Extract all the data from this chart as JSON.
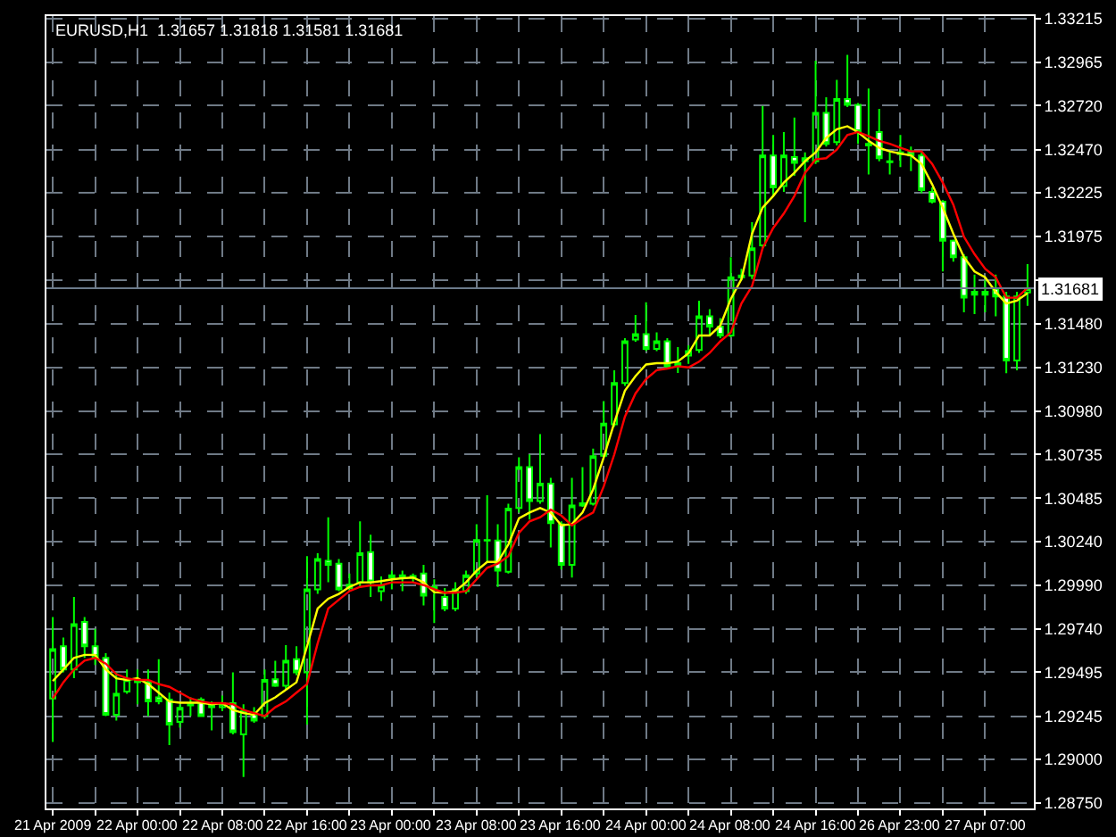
{
  "chart_data": {
    "type": "candlestick",
    "title": "EURUSD,H1  1.31657 1.31818 1.31581 1.31681",
    "categories": [
      "21 Apr 2009",
      null,
      null,
      null,
      null,
      null,
      null,
      null,
      "22 Apr 00:00",
      null,
      null,
      null,
      null,
      null,
      null,
      null,
      "22 Apr 08:00",
      null,
      null,
      null,
      null,
      null,
      null,
      null,
      "22 Apr 16:00",
      null,
      null,
      null,
      null,
      null,
      null,
      null,
      "23 Apr 00:00",
      null,
      null,
      null,
      null,
      null,
      null,
      null,
      "23 Apr 08:00",
      null,
      null,
      null,
      null,
      null,
      null,
      null,
      "23 Apr 16:00",
      null,
      null,
      null,
      null,
      null,
      null,
      null,
      "24 Apr 00:00",
      null,
      null,
      null,
      null,
      null,
      null,
      null,
      "24 Apr 08:00",
      null,
      null,
      null,
      null,
      null,
      null,
      null,
      "24 Apr 16:00",
      null,
      null,
      null,
      null,
      null,
      null,
      null,
      "26 Apr 23:00",
      null,
      null,
      null,
      null,
      null,
      null,
      null,
      "27 Apr 07:00",
      null,
      null,
      null,
      null
    ],
    "color": "#00ff00",
    "ohlc": [
      [
        1.29346,
        1.29809,
        1.29098,
        1.29627
      ],
      [
        1.29643,
        1.29693,
        1.29494,
        1.29511
      ],
      [
        1.29511,
        1.29924,
        1.29461,
        1.29769
      ],
      [
        1.29782,
        1.29809,
        1.29577,
        1.29643
      ],
      [
        1.29643,
        1.29742,
        1.29537,
        1.29584
      ],
      [
        1.29577,
        1.29604,
        1.29246,
        1.29253
      ],
      [
        1.29253,
        1.29494,
        1.2922,
        1.29372
      ],
      [
        1.29385,
        1.29511,
        1.29372,
        1.29455
      ],
      [
        1.29438,
        1.29511,
        1.29313,
        1.29451
      ],
      [
        1.29438,
        1.29511,
        1.29246,
        1.29329
      ],
      [
        1.29352,
        1.2957,
        1.29313,
        1.29329
      ],
      [
        1.29339,
        1.29379,
        1.29081,
        1.29197
      ],
      [
        1.29213,
        1.29313,
        1.2918,
        1.29293
      ],
      [
        1.29306,
        1.29352,
        1.29246,
        1.29313
      ],
      [
        1.29339,
        1.29352,
        1.2924,
        1.29246
      ],
      [
        1.29313,
        1.29329,
        1.29164,
        1.29296
      ],
      [
        1.29296,
        1.29362,
        1.29273,
        1.29319
      ],
      [
        1.29319,
        1.29494,
        1.29141,
        1.29154
      ],
      [
        1.29141,
        1.29313,
        1.28899,
        1.29273
      ],
      [
        1.29253,
        1.29296,
        1.29207,
        1.2922
      ],
      [
        1.29246,
        1.29511,
        1.2923,
        1.29451
      ],
      [
        1.29455,
        1.29561,
        1.29412,
        1.29418
      ],
      [
        1.29418,
        1.2965,
        1.29395,
        1.29561
      ],
      [
        1.2957,
        1.29643,
        1.29478,
        1.29494
      ],
      [
        1.29494,
        1.30156,
        1.29197,
        1.29967
      ],
      [
        1.29967,
        1.30172,
        1.29941,
        1.30139
      ],
      [
        1.30129,
        1.30377,
        1.30007,
        1.30106
      ],
      [
        1.30113,
        1.30139,
        1.29957,
        1.29967
      ],
      [
        1.29974,
        1.30057,
        1.29957,
        1.29994
      ],
      [
        1.30007,
        1.30354,
        1.29974,
        1.30172
      ],
      [
        1.30179,
        1.30278,
        1.29924,
        1.30007
      ],
      [
        1.29957,
        1.3004,
        1.29901,
        1.29987
      ],
      [
        1.30034,
        1.30073,
        1.29967,
        1.30047
      ],
      [
        1.3004,
        1.30073,
        1.29957,
        1.30047
      ],
      [
        1.30034,
        1.30057,
        1.30007,
        1.30043
      ],
      [
        1.30057,
        1.30106,
        1.29875,
        1.29931
      ],
      [
        1.29967,
        1.30024,
        1.29775,
        1.29981
      ],
      [
        1.29924,
        1.29974,
        1.29842,
        1.29858
      ],
      [
        1.29858,
        1.30007,
        1.29842,
        1.29967
      ],
      [
        1.29957,
        1.30073,
        1.29941,
        1.30047
      ],
      [
        1.30057,
        1.30338,
        1.30034,
        1.30248
      ],
      [
        1.30248,
        1.30503,
        1.30123,
        1.30245
      ],
      [
        1.30245,
        1.30338,
        1.29981,
        1.30073
      ],
      [
        1.30067,
        1.30454,
        1.30057,
        1.30427
      ],
      [
        1.3043,
        1.30718,
        1.30404,
        1.30662
      ],
      [
        1.30662,
        1.30735,
        1.30364,
        1.3047
      ],
      [
        1.3047,
        1.3085,
        1.30454,
        1.30569
      ],
      [
        1.30569,
        1.30602,
        1.30206,
        1.30344
      ],
      [
        1.30338,
        1.30354,
        1.3008,
        1.30106
      ],
      [
        1.30106,
        1.30602,
        1.30034,
        1.30444
      ],
      [
        1.30444,
        1.30662,
        1.30437,
        1.30457
      ],
      [
        1.30454,
        1.30768,
        1.30444,
        1.30725
      ],
      [
        1.30728,
        1.31039,
        1.30718,
        1.3091
      ],
      [
        1.30907,
        1.31214,
        1.30893,
        1.31141
      ],
      [
        1.31141,
        1.31396,
        1.31125,
        1.31379
      ],
      [
        1.31389,
        1.31528,
        1.31376,
        1.31419
      ],
      [
        1.31419,
        1.31601,
        1.31323,
        1.31336
      ],
      [
        1.31336,
        1.31429,
        1.31323,
        1.31379
      ],
      [
        1.31379,
        1.31396,
        1.31224,
        1.31237
      ],
      [
        1.31237,
        1.31346,
        1.31198,
        1.31254
      ],
      [
        1.31297,
        1.31356,
        1.3125,
        1.31323
      ],
      [
        1.31329,
        1.3161,
        1.31313,
        1.31521
      ],
      [
        1.31521,
        1.31561,
        1.31412,
        1.31462
      ],
      [
        1.31462,
        1.31511,
        1.31396,
        1.31412
      ],
      [
        1.31412,
        1.31858,
        1.31402,
        1.31743
      ],
      [
        1.31743,
        1.31792,
        1.31726,
        1.31753
      ],
      [
        1.31753,
        1.32057,
        1.31733,
        1.31908
      ],
      [
        1.31925,
        1.32718,
        1.31908,
        1.32437
      ],
      [
        1.32437,
        1.32553,
        1.32206,
        1.32255
      ],
      [
        1.32262,
        1.3257,
        1.32229,
        1.32437
      ],
      [
        1.32427,
        1.32652,
        1.32321,
        1.32394
      ],
      [
        1.32404,
        1.32454,
        1.32057,
        1.32421
      ],
      [
        1.32404,
        1.32976,
        1.32388,
        1.32679
      ],
      [
        1.32679,
        1.32768,
        1.32487,
        1.32503
      ],
      [
        1.32513,
        1.32867,
        1.32493,
        1.32758
      ],
      [
        1.32758,
        1.33009,
        1.32712,
        1.32725
      ],
      [
        1.32725,
        1.32735,
        1.32503,
        1.3257
      ],
      [
        1.32503,
        1.32817,
        1.32328,
        1.32493
      ],
      [
        1.3257,
        1.32702,
        1.32404,
        1.32421
      ],
      [
        1.32404,
        1.32454,
        1.32328,
        1.32398
      ],
      [
        1.32454,
        1.32553,
        1.32371,
        1.32444
      ],
      [
        1.3246,
        1.32487,
        1.32348,
        1.32437
      ],
      [
        1.32437,
        1.32454,
        1.32222,
        1.32239
      ],
      [
        1.32229,
        1.32255,
        1.32163,
        1.32173
      ],
      [
        1.32173,
        1.32183,
        1.31776,
        1.31951
      ],
      [
        1.31951,
        1.31958,
        1.31832,
        1.31858
      ],
      [
        1.31858,
        1.31875,
        1.31544,
        1.31627
      ],
      [
        1.3166,
        1.31759,
        1.31534,
        1.31644
      ],
      [
        1.31644,
        1.31726,
        1.31544,
        1.3166
      ],
      [
        1.31677,
        1.31759,
        1.31521,
        1.31634
      ],
      [
        1.31634,
        1.3166,
        1.31197,
        1.3127
      ],
      [
        1.3127,
        1.3166,
        1.31214,
        1.31634
      ],
      [
        1.31657,
        1.31818,
        1.31581,
        1.31681
      ]
    ],
    "series": [
      {
        "type": "line",
        "color": "#ffff00",
        "values": [
          1.29445,
          1.29511,
          1.29577,
          1.29594,
          1.29594,
          1.29511,
          1.29461,
          1.29451,
          1.29461,
          1.29428,
          1.29379,
          1.29329,
          1.29322,
          1.29322,
          1.29322,
          1.29313,
          1.29319,
          1.2928,
          1.29263,
          1.29253,
          1.29319,
          1.29352,
          1.29395,
          1.29438,
          1.29643,
          1.29858,
          1.29914,
          1.29941,
          1.29981,
          1.30007,
          1.30007,
          1.30014,
          1.30024,
          1.3003,
          1.30034,
          1.30007,
          1.29951,
          1.29948,
          1.29957,
          1.30007,
          1.30073,
          1.30123,
          1.30123,
          1.30222,
          1.30371,
          1.30404,
          1.3043,
          1.30404,
          1.30331,
          1.30338,
          1.30404,
          1.30536,
          1.30718,
          1.30916,
          1.31098,
          1.31181,
          1.31247,
          1.31254,
          1.31254,
          1.31264,
          1.3131,
          1.31412,
          1.31412,
          1.31468,
          1.3162,
          1.31733,
          1.31991,
          1.3214,
          1.32206,
          1.32282,
          1.32338,
          1.32404,
          1.32454,
          1.32536,
          1.32586,
          1.32603,
          1.3257,
          1.3252,
          1.3248,
          1.3246,
          1.32447,
          1.32437,
          1.32388,
          1.32272,
          1.3214,
          1.31991,
          1.31858,
          1.31776,
          1.31743,
          1.3166,
          1.31594,
          1.3161,
          1.31653
        ]
      },
      {
        "type": "line",
        "color": "#ff0000",
        "values": [
          1.29346,
          1.29438,
          1.29511,
          1.29561,
          1.29577,
          1.29544,
          1.29484,
          1.29461,
          1.29451,
          1.29451,
          1.29428,
          1.29412,
          1.29379,
          1.29346,
          1.29329,
          1.29319,
          1.29319,
          1.29313,
          1.2928,
          1.29263,
          1.29246,
          1.29296,
          1.29329,
          1.29379,
          1.29428,
          1.2966,
          1.29858,
          1.29908,
          1.29957,
          1.29981,
          1.2999,
          1.2999,
          1.30007,
          1.30007,
          1.30007,
          1.29991,
          1.29967,
          1.29948,
          1.29948,
          1.29957,
          1.30024,
          1.3009,
          1.30113,
          1.30156,
          1.30288,
          1.30354,
          1.30377,
          1.3042,
          1.30387,
          1.30331,
          1.30371,
          1.30404,
          1.30553,
          1.30735,
          1.3095,
          1.31082,
          1.31164,
          1.31214,
          1.31224,
          1.31237,
          1.3123,
          1.31263,
          1.31313,
          1.31379,
          1.31429,
          1.31594,
          1.31693,
          1.31908,
          1.32024,
          1.32106,
          1.32206,
          1.32338,
          1.32414,
          1.32421,
          1.3247,
          1.32553,
          1.3257,
          1.32546,
          1.3252,
          1.32503,
          1.3248,
          1.3246,
          1.3246,
          1.32388,
          1.32282,
          1.32156,
          1.31974,
          1.31875,
          1.31792,
          1.31743,
          1.31627,
          1.31627,
          1.31683
        ]
      }
    ],
    "ylim": [
      1.2872,
      1.3323
    ],
    "yticks": [
      {
        "value": 1.33215,
        "label": "1.33215"
      },
      {
        "value": 1.32965,
        "label": "1.32965"
      },
      {
        "value": 1.3272,
        "label": "1.32720"
      },
      {
        "value": 1.3247,
        "label": "1.32470"
      },
      {
        "value": 1.32225,
        "label": "1.32225"
      },
      {
        "value": 1.31975,
        "label": "1.31975"
      },
      {
        "value": 1.31725,
        "label": null
      },
      {
        "value": 1.3148,
        "label": "1.31480"
      },
      {
        "value": 1.3123,
        "label": "1.31230"
      },
      {
        "value": 1.3098,
        "label": "1.30980"
      },
      {
        "value": 1.30735,
        "label": "1.30735"
      },
      {
        "value": 1.30485,
        "label": "1.30485"
      },
      {
        "value": 1.3024,
        "label": "1.30240"
      },
      {
        "value": 1.2999,
        "label": "1.29990"
      },
      {
        "value": 1.2974,
        "label": "1.29740"
      },
      {
        "value": 1.29495,
        "label": "1.29495"
      },
      {
        "value": 1.29245,
        "label": "1.29245"
      },
      {
        "value": 1.29,
        "label": "1.29000"
      },
      {
        "value": 1.2875,
        "label": "1.28750"
      }
    ],
    "ref_lines": [
      {
        "axis": "y",
        "value": 1.31681,
        "label": "1.31681",
        "color": "#6c7b8b"
      }
    ],
    "grid": true
  }
}
